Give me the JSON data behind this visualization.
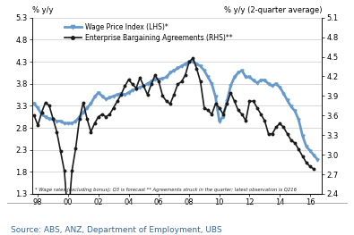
{
  "title_left": "% y/y",
  "title_right": "% y/y (2-quarter average)",
  "footnote": "* Wage rates (excluding bonus); Q3 is forecast ** Agreements struck in the quarter; latest observation is Q216",
  "source": "Source: ABS, ANZ, Department of Employment, UBS",
  "legend1": "Wage Price Index (LHS)*",
  "legend2": "Enterprise Bargaining Agreements (RHS)**",
  "ylim_left": [
    1.3,
    5.3
  ],
  "ylim_right": [
    2.4,
    5.1
  ],
  "yticks_left": [
    1.3,
    1.8,
    2.3,
    2.8,
    3.3,
    3.8,
    4.3,
    4.8,
    5.3
  ],
  "yticks_right": [
    2.4,
    2.7,
    3.0,
    3.3,
    3.6,
    3.9,
    4.2,
    4.5,
    4.8,
    5.1
  ],
  "xticks": [
    1998,
    2000,
    2002,
    2004,
    2006,
    2008,
    2010,
    2012,
    2014,
    2016
  ],
  "xtick_labels": [
    "98",
    "00",
    "02",
    "04",
    "06",
    "08",
    "10",
    "12",
    "14",
    "16"
  ],
  "wpi_color": "#6699CC",
  "eba_color": "#1a1a1a",
  "background_color": "#ffffff",
  "wpi_x": [
    1997.75,
    1998.0,
    1998.25,
    1998.5,
    1998.75,
    1999.0,
    1999.25,
    1999.5,
    1999.75,
    2000.0,
    2000.25,
    2000.5,
    2000.75,
    2001.0,
    2001.25,
    2001.5,
    2001.75,
    2002.0,
    2002.25,
    2002.5,
    2002.75,
    2003.0,
    2003.25,
    2003.5,
    2003.75,
    2004.0,
    2004.25,
    2004.5,
    2004.75,
    2005.0,
    2005.25,
    2005.5,
    2005.75,
    2006.0,
    2006.25,
    2006.5,
    2006.75,
    2007.0,
    2007.25,
    2007.5,
    2007.75,
    2008.0,
    2008.25,
    2008.5,
    2008.75,
    2009.0,
    2009.25,
    2009.5,
    2009.75,
    2010.0,
    2010.25,
    2010.5,
    2010.75,
    2011.0,
    2011.25,
    2011.5,
    2011.75,
    2012.0,
    2012.25,
    2012.5,
    2012.75,
    2013.0,
    2013.25,
    2013.5,
    2013.75,
    2014.0,
    2014.25,
    2014.5,
    2014.75,
    2015.0,
    2015.25,
    2015.5,
    2015.75,
    2016.0,
    2016.25,
    2016.5
  ],
  "wpi_y": [
    3.35,
    3.25,
    3.1,
    3.05,
    3.0,
    3.0,
    2.95,
    2.95,
    2.9,
    2.9,
    2.9,
    2.95,
    3.05,
    3.15,
    3.25,
    3.35,
    3.5,
    3.6,
    3.52,
    3.45,
    3.48,
    3.52,
    3.55,
    3.58,
    3.55,
    3.6,
    3.65,
    3.68,
    3.72,
    3.75,
    3.8,
    3.85,
    3.9,
    3.9,
    3.92,
    3.95,
    4.05,
    4.1,
    4.15,
    4.2,
    4.25,
    4.3,
    4.3,
    4.25,
    4.2,
    4.1,
    3.95,
    3.8,
    3.5,
    2.95,
    3.05,
    3.4,
    3.75,
    3.95,
    4.05,
    4.1,
    3.95,
    3.95,
    3.88,
    3.82,
    3.88,
    3.88,
    3.8,
    3.75,
    3.8,
    3.72,
    3.58,
    3.42,
    3.28,
    3.18,
    2.98,
    2.62,
    2.38,
    2.28,
    2.18,
    2.08
  ],
  "eba_x": [
    1997.75,
    1998.0,
    1998.25,
    1998.5,
    1998.75,
    1999.0,
    1999.25,
    1999.5,
    1999.75,
    2000.0,
    2000.25,
    2000.5,
    2000.75,
    2001.0,
    2001.25,
    2001.5,
    2001.75,
    2002.0,
    2002.25,
    2002.5,
    2002.75,
    2003.0,
    2003.25,
    2003.5,
    2003.75,
    2004.0,
    2004.25,
    2004.5,
    2004.75,
    2005.0,
    2005.25,
    2005.5,
    2005.75,
    2006.0,
    2006.25,
    2006.5,
    2006.75,
    2007.0,
    2007.25,
    2007.5,
    2007.75,
    2008.0,
    2008.25,
    2008.5,
    2008.75,
    2009.0,
    2009.25,
    2009.5,
    2009.75,
    2010.0,
    2010.25,
    2010.5,
    2010.75,
    2011.0,
    2011.25,
    2011.5,
    2011.75,
    2012.0,
    2012.25,
    2012.5,
    2012.75,
    2013.0,
    2013.25,
    2013.5,
    2013.75,
    2014.0,
    2014.25,
    2014.5,
    2014.75,
    2015.0,
    2015.25,
    2015.5,
    2015.75,
    2016.0,
    2016.25
  ],
  "eba_y": [
    3.6,
    3.45,
    3.65,
    3.8,
    3.75,
    3.55,
    3.35,
    3.05,
    2.75,
    2.0,
    2.75,
    3.1,
    3.55,
    3.8,
    3.55,
    3.35,
    3.48,
    3.58,
    3.62,
    3.58,
    3.62,
    3.72,
    3.82,
    3.92,
    4.05,
    4.15,
    4.08,
    4.02,
    4.18,
    4.05,
    3.92,
    4.08,
    4.22,
    4.12,
    3.9,
    3.82,
    3.78,
    3.92,
    4.08,
    4.12,
    4.22,
    4.42,
    4.48,
    4.32,
    4.12,
    3.72,
    3.68,
    3.62,
    3.78,
    3.72,
    3.62,
    3.78,
    3.95,
    3.82,
    3.68,
    3.62,
    3.52,
    3.82,
    3.82,
    3.72,
    3.62,
    3.52,
    3.32,
    3.32,
    3.42,
    3.48,
    3.42,
    3.32,
    3.22,
    3.18,
    3.08,
    2.98,
    2.88,
    2.82,
    2.78
  ]
}
